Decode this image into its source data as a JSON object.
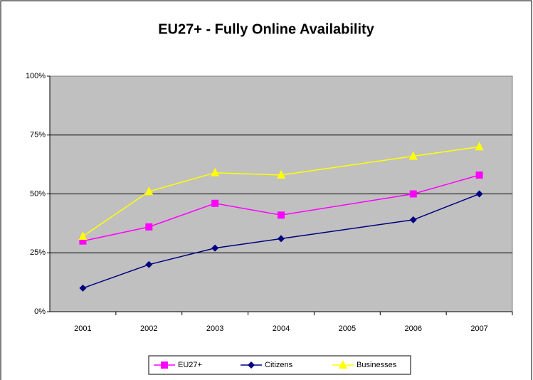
{
  "chart_data": {
    "type": "line",
    "title": "EU27+ - Fully Online Availability",
    "x": [
      2001,
      2002,
      2003,
      2004,
      2006,
      2007
    ],
    "xlim": [
      2000.5,
      2007.5
    ],
    "xticks": [
      2001,
      2002,
      2003,
      2004,
      2005,
      2006,
      2007
    ],
    "ylim": [
      0,
      100
    ],
    "yticks": [
      {
        "value": 0,
        "label": "0%"
      },
      {
        "value": 25,
        "label": "25%"
      },
      {
        "value": 50,
        "label": "50%"
      },
      {
        "value": 75,
        "label": "75%"
      },
      {
        "value": 100,
        "label": "100%"
      }
    ],
    "grid": true,
    "legend": "bottom",
    "series": [
      {
        "name": "EU27+",
        "color": "#ff00ff",
        "marker": "square",
        "values": [
          30,
          36,
          46,
          41,
          50,
          58
        ]
      },
      {
        "name": "Citizens",
        "color": "#000080",
        "marker": "diamond",
        "values": [
          10,
          20,
          27,
          31,
          39,
          50
        ]
      },
      {
        "name": "Businesses",
        "color": "#ffff00",
        "marker": "triangle",
        "values": [
          32,
          51,
          59,
          58,
          66,
          70
        ]
      }
    ]
  }
}
